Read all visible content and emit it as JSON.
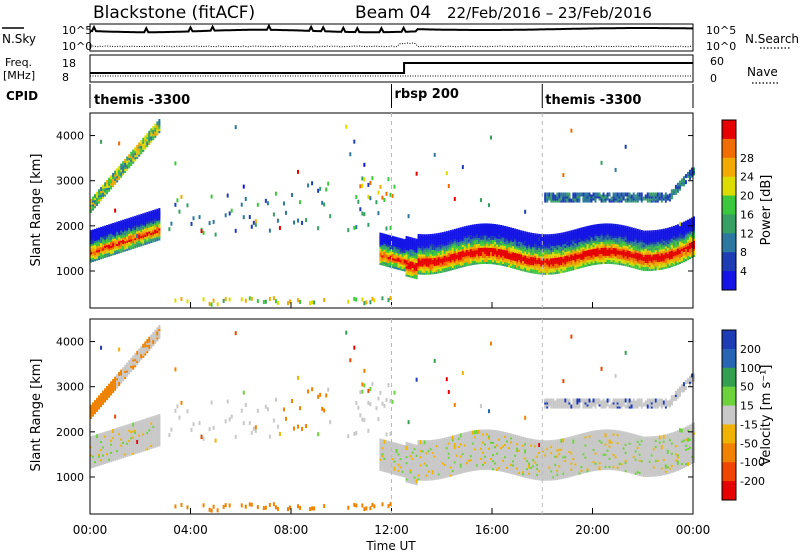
{
  "header": {
    "station": "Blackstone (fitACF)",
    "beam": "Beam 04",
    "date_range": "22/Feb/2016 – 23/Feb/2016"
  },
  "left_labels": {
    "nsky": "N.Sky",
    "freq_line1": "Freq.",
    "freq_line2": "[MHz]",
    "cpid": "CPID"
  },
  "right_labels": {
    "nsearch": "N.Search",
    "nave": "Nave"
  },
  "noise_panel": {
    "left_ticks": [
      "10^5",
      "10^0"
    ],
    "right_ticks": [
      "10^5",
      "10^0"
    ]
  },
  "freq_panel": {
    "left_ticks": [
      "18",
      "8"
    ],
    "right_ticks": [
      "60",
      "0"
    ],
    "freq_step_time": 12.5
  },
  "cpid_segments": [
    {
      "label": "themis -3300",
      "start": 0
    },
    {
      "label": "rbsp 200",
      "start": 12
    },
    {
      "label": "themis -3300",
      "start": 18
    }
  ],
  "chart_data": [
    {
      "type": "heatmap",
      "name": "power-panel",
      "ylabel": "Slant Range [km]",
      "xlim": [
        0,
        24
      ],
      "ylim": [
        180,
        4500
      ],
      "yticks": [
        1000,
        2000,
        3000,
        4000
      ],
      "colorbar": {
        "label": "Power [dB]",
        "ticks": [
          "4",
          "8",
          "12",
          "16",
          "20",
          "24",
          "28"
        ],
        "colors": [
          "#1414e6",
          "#1e3cb4",
          "#2d78a0",
          "#37a064",
          "#3cc83c",
          "#dcdc00",
          "#f0aa00",
          "#f06e00",
          "#e60000"
        ]
      }
    },
    {
      "type": "heatmap",
      "name": "velocity-panel",
      "ylabel": "Slant Range [km]",
      "xlabel": "Time UT",
      "xlim": [
        0,
        24
      ],
      "ylim": [
        180,
        4500
      ],
      "yticks": [
        1000,
        2000,
        3000,
        4000
      ],
      "xticks": [
        "00:00",
        "04:00",
        "08:00",
        "12:00",
        "16:00",
        "20:00",
        "00:00"
      ],
      "colorbar": {
        "label": "Velocity [m s⁻¹]",
        "ticks": [
          "200",
          "100",
          "50",
          "15",
          "-15",
          "-50",
          "-100",
          "-200"
        ],
        "colors": [
          "#1e3cb4",
          "#2864b4",
          "#32a050",
          "#6ed23c",
          "#c8c8c8",
          "#f0b400",
          "#f08200",
          "#f04600",
          "#e60000"
        ]
      }
    }
  ]
}
